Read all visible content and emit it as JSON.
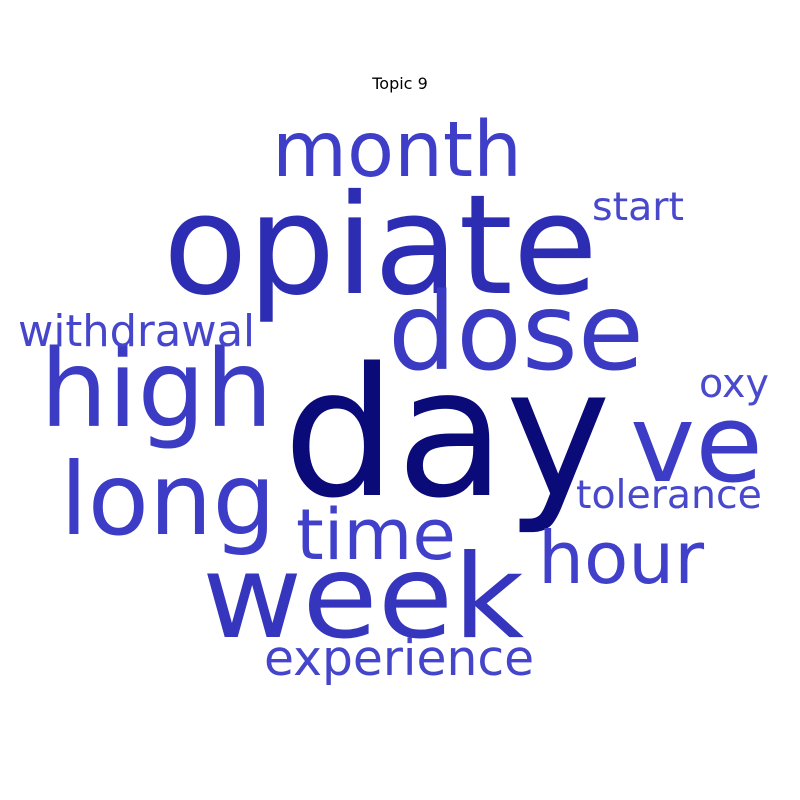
{
  "chart_data": {
    "type": "wordcloud",
    "title": "Topic 9",
    "words": [
      {
        "text": "day",
        "weight": 1.0,
        "color": "#0a0a78"
      },
      {
        "text": "opiate",
        "weight": 0.72,
        "color": "#2d2db4"
      },
      {
        "text": "week",
        "weight": 0.6,
        "color": "#3535bd"
      },
      {
        "text": "high",
        "weight": 0.5,
        "color": "#3b3bc4"
      },
      {
        "text": "dose",
        "weight": 0.5,
        "color": "#3a3ac3"
      },
      {
        "text": "long",
        "weight": 0.48,
        "color": "#3c3cc6"
      },
      {
        "text": "ve",
        "weight": 0.46,
        "color": "#3c3cc6"
      },
      {
        "text": "month",
        "weight": 0.4,
        "color": "#3e3ec8"
      },
      {
        "text": "time",
        "weight": 0.35,
        "color": "#4040ca"
      },
      {
        "text": "hour",
        "weight": 0.35,
        "color": "#4040ca"
      },
      {
        "text": "experience",
        "weight": 0.25,
        "color": "#4545cc"
      },
      {
        "text": "withdrawal",
        "weight": 0.22,
        "color": "#4646cc"
      },
      {
        "text": "tolerance",
        "weight": 0.2,
        "color": "#4848cd"
      },
      {
        "text": "start",
        "weight": 0.2,
        "color": "#4848cd"
      },
      {
        "text": "oxy",
        "weight": 0.19,
        "color": "#4a4ace"
      }
    ]
  }
}
